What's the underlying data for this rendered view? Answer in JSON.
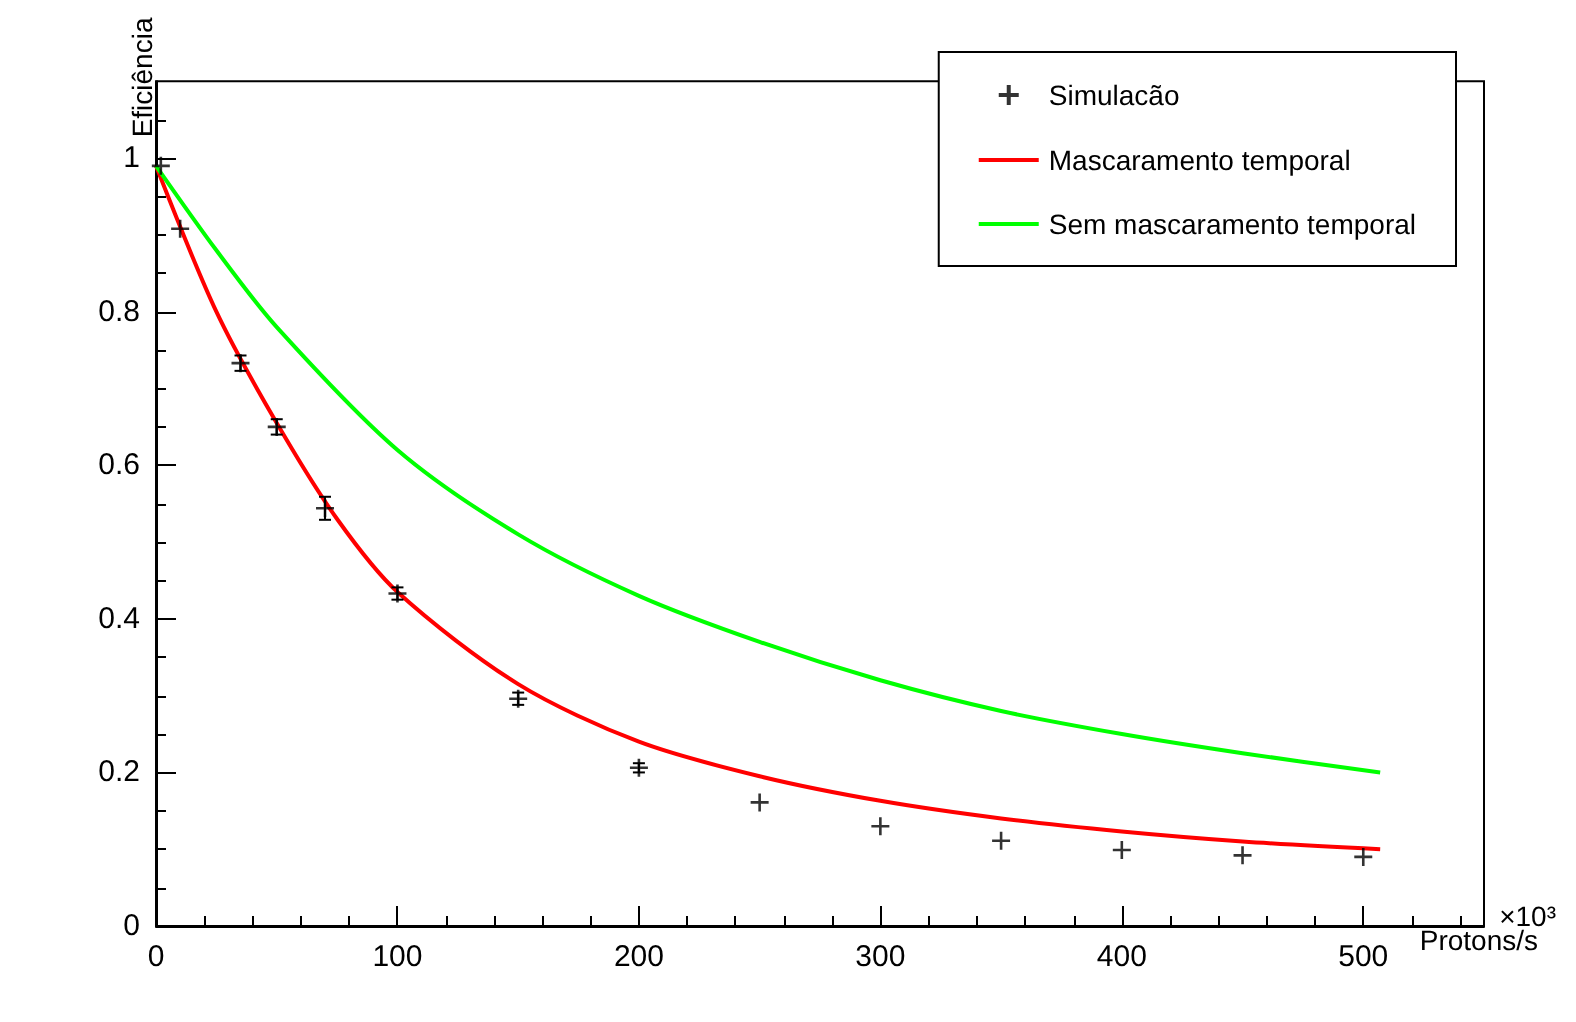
{
  "chart_data": {
    "type": "scatter",
    "xlabel": "Protons/s",
    "ylabel": "Eficiência",
    "annotations": [
      "×10³"
    ],
    "xlim": [
      0,
      550
    ],
    "xticks": [
      0,
      100,
      200,
      300,
      400,
      500
    ],
    "ylim": [
      0,
      1.1
    ],
    "yticks": [
      0,
      0.2,
      0.4,
      0.6,
      0.8,
      1
    ],
    "grid": false,
    "legend": "top right",
    "series": [
      {
        "name": "Simulacão",
        "marker": "cross",
        "color": "#000000",
        "x": [
          2,
          10,
          35,
          50,
          70,
          100,
          150,
          200,
          250,
          300,
          350,
          400,
          450,
          500
        ],
        "values": [
          0.99,
          0.908,
          0.733,
          0.65,
          0.544,
          0.433,
          0.296,
          0.206,
          0.161,
          0.13,
          0.111,
          0.099,
          0.092,
          0.09
        ],
        "errors": [
          null,
          null,
          0.01,
          0.01,
          0.015,
          0.008,
          0.008,
          0.006,
          null,
          null,
          null,
          null,
          null,
          null
        ]
      },
      {
        "name": "Mascaramento temporal",
        "type": "line",
        "color": "#ff0000",
        "x": [
          0,
          25,
          50,
          75,
          100,
          150,
          200,
          250,
          300,
          350,
          400,
          450,
          507
        ],
        "values": [
          0.99,
          0.8,
          0.655,
          0.53,
          0.435,
          0.315,
          0.24,
          0.195,
          0.163,
          0.14,
          0.123,
          0.11,
          0.1
        ]
      },
      {
        "name": "Sem mascaramento temporal",
        "type": "line",
        "color": "#00ff00",
        "x": [
          0,
          25,
          50,
          100,
          150,
          200,
          250,
          300,
          350,
          400,
          450,
          507
        ],
        "values": [
          0.99,
          0.88,
          0.78,
          0.62,
          0.51,
          0.43,
          0.37,
          0.32,
          0.28,
          0.25,
          0.225,
          0.2
        ]
      }
    ]
  }
}
